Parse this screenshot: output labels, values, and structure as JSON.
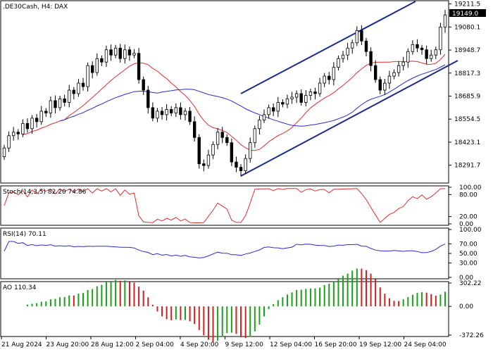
{
  "header": {
    "title": ".DE30Cash, H4:  DAX",
    "current_price": "19149.0"
  },
  "colors": {
    "bull_candle": "#000000",
    "bear_candle": "#000000",
    "ma_fast": "#e03030",
    "ma_slow": "#2a2ad6",
    "channel": "#1c2a8f",
    "stoch_main": "#e03030",
    "rsi_line": "#2a2ad6",
    "ao_up": "#1aa01a",
    "ao_down": "#d02020",
    "price_box": "#000000"
  },
  "chart_data": [
    {
      "type": "candlestick",
      "title": ".DE30Cash, H4:  DAX",
      "y_ticks": [
        "19211.5",
        "19080.1",
        "18948.7",
        "18817.3",
        "18685.9",
        "18554.5",
        "18423.1",
        "18291.7"
      ],
      "ylim": [
        18190,
        19230
      ],
      "x_ticks": [
        "21 Aug 2024",
        "23 Aug 20:00",
        "28 Aug 12:00",
        "2 Sep 04:00",
        "4 Sep 20:00",
        "9 Sep 12:00",
        "12 Sep 04:00",
        "16 Sep 20:00",
        "19 Sep 12:00",
        "24 Sep 04:00"
      ],
      "close": [
        18390,
        18460,
        18480,
        18470,
        18530,
        18500,
        18560,
        18540,
        18600,
        18590,
        18660,
        18620,
        18670,
        18650,
        18720,
        18700,
        18760,
        18740,
        18860,
        18820,
        18900,
        18880,
        18950,
        18920,
        18960,
        18900,
        18950,
        18920,
        18930,
        18780,
        18720,
        18620,
        18560,
        18600,
        18580,
        18610,
        18590,
        18620,
        18580,
        18600,
        18540,
        18450,
        18300,
        18290,
        18350,
        18410,
        18480,
        18450,
        18420,
        18310,
        18280,
        18260,
        18330,
        18420,
        18500,
        18550,
        18580,
        18620,
        18600,
        18650,
        18640,
        18670,
        18680,
        18700,
        18650,
        18690,
        18710,
        18700,
        18760,
        18800,
        18780,
        18850,
        18900,
        18920,
        18960,
        18990,
        19060,
        19000,
        18940,
        18860,
        18780,
        18720,
        18760,
        18800,
        18820,
        18860,
        18880,
        18940,
        18980,
        18960,
        18950,
        18900,
        18920,
        18950,
        19080,
        19149
      ],
      "open": [
        18340,
        18390,
        18460,
        18480,
        18470,
        18530,
        18500,
        18560,
        18540,
        18600,
        18590,
        18660,
        18620,
        18670,
        18650,
        18720,
        18700,
        18760,
        18740,
        18860,
        18820,
        18900,
        18880,
        18950,
        18920,
        18960,
        18900,
        18950,
        18920,
        18930,
        18780,
        18720,
        18620,
        18560,
        18600,
        18580,
        18610,
        18590,
        18620,
        18580,
        18600,
        18540,
        18450,
        18300,
        18290,
        18350,
        18410,
        18480,
        18450,
        18420,
        18310,
        18280,
        18260,
        18330,
        18420,
        18500,
        18550,
        18580,
        18620,
        18600,
        18650,
        18640,
        18670,
        18680,
        18700,
        18650,
        18690,
        18710,
        18700,
        18760,
        18800,
        18780,
        18850,
        18900,
        18920,
        18960,
        18990,
        19060,
        19000,
        18940,
        18860,
        18780,
        18720,
        18760,
        18800,
        18820,
        18860,
        18880,
        18940,
        18980,
        18960,
        18950,
        18900,
        18920,
        18950,
        19080
      ]
    },
    {
      "type": "line",
      "title": "Stoch(14,3,5) 82.20 74.86",
      "y_ticks": [
        "100.00",
        "80.00",
        "20.00",
        "0.00"
      ],
      "ylim": [
        0,
        100
      ]
    },
    {
      "type": "line",
      "title": "RSI(14) 70.11",
      "y_ticks": [
        "100.00",
        "70.00",
        "50.00",
        "30.00",
        "0.00"
      ],
      "ylim": [
        0,
        100
      ]
    },
    {
      "type": "bar",
      "title": "AO 110.34",
      "y_ticks": [
        "302.22",
        "0.00",
        "-372.26"
      ],
      "ylim": [
        -372.26,
        302.22
      ]
    }
  ]
}
